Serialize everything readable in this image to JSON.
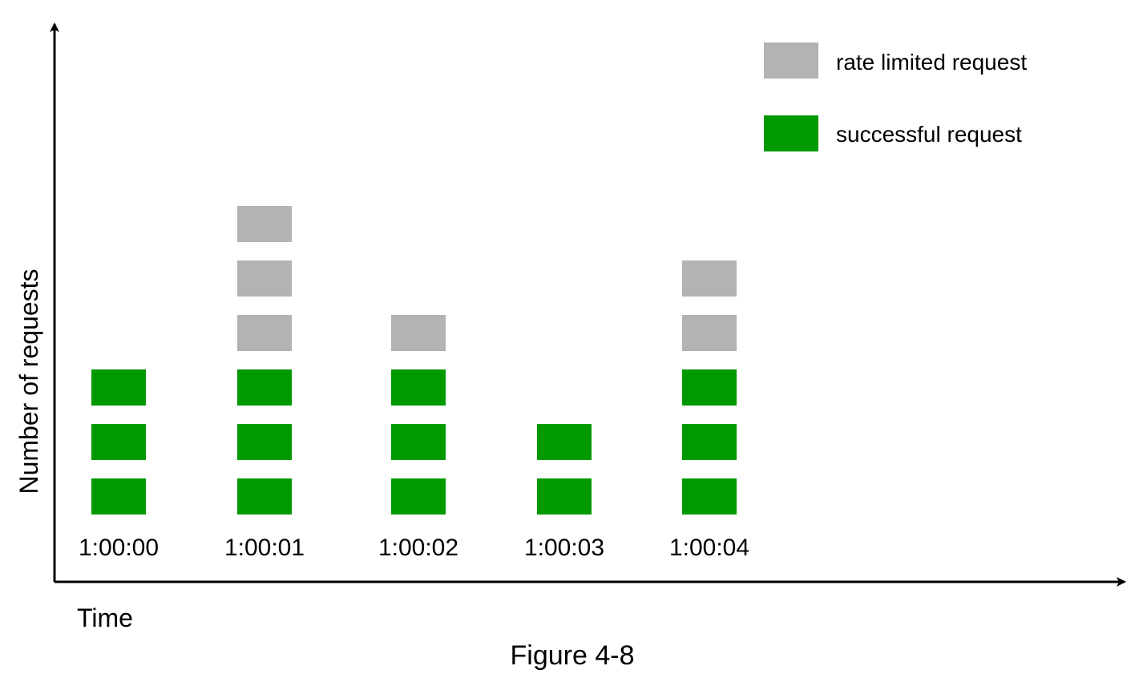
{
  "chart_data": {
    "type": "bar",
    "caption": "Figure 4-8",
    "xlabel": "Time",
    "ylabel": "Number of requests",
    "categories": [
      "1:00:00",
      "1:00:01",
      "1:00:02",
      "1:00:03",
      "1:00:04"
    ],
    "series": [
      {
        "name": "successful request",
        "values": [
          3,
          3,
          3,
          2,
          3
        ],
        "color": "#009900"
      },
      {
        "name": "rate limited request",
        "values": [
          0,
          3,
          1,
          0,
          2
        ],
        "color": "#b3b3b3"
      }
    ],
    "stacked": true,
    "legend_position": "top-right",
    "grid": false
  }
}
